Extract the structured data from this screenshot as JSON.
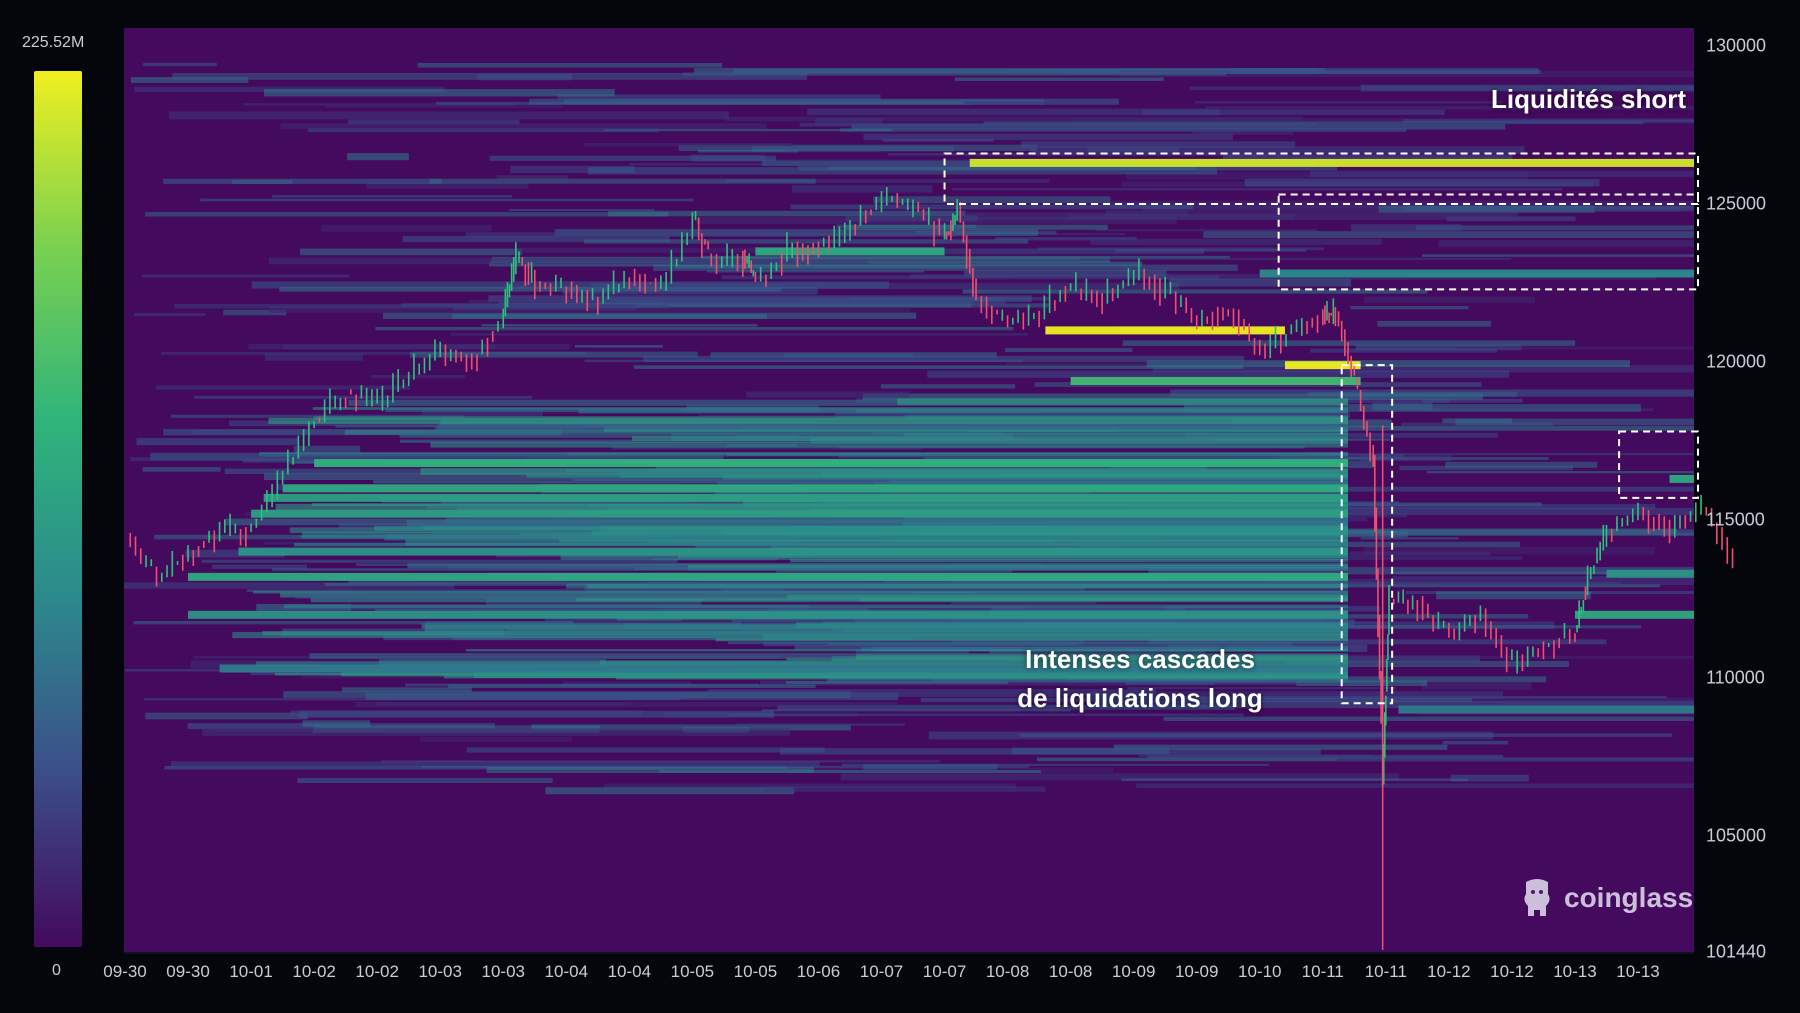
{
  "chart_data": {
    "type": "heatmap",
    "title": "",
    "x_tick_labels": [
      "09-30",
      "09-30",
      "10-01",
      "10-02",
      "10-02",
      "10-03",
      "10-03",
      "10-04",
      "10-04",
      "10-05",
      "10-05",
      "10-06",
      "10-07",
      "10-07",
      "10-08",
      "10-08",
      "10-09",
      "10-09",
      "10-10",
      "10-11",
      "10-11",
      "10-12",
      "10-12",
      "10-13",
      "10-13"
    ],
    "y_tick_labels": [
      "130000",
      "125000",
      "120000",
      "115000",
      "110000",
      "105000",
      "101440"
    ],
    "ylim": [
      101440,
      130000
    ],
    "colorbar": {
      "max_label": "225.52M",
      "min_label": "0",
      "colors": [
        "#440a5e",
        "#3b4f8a",
        "#2b8a8c",
        "#2fb47b",
        "#7ad150",
        "#f0ef1f"
      ]
    },
    "price_series": {
      "color_up": "#2ec27e",
      "color_down": "#f0506e",
      "approx_path": [
        [
          0,
          114400
        ],
        [
          0.5,
          113200
        ],
        [
          1.0,
          114000
        ],
        [
          1.5,
          114600
        ],
        [
          2.0,
          114800
        ],
        [
          2.5,
          116500
        ],
        [
          3.0,
          118200
        ],
        [
          3.5,
          119000
        ],
        [
          4.0,
          118700
        ],
        [
          4.5,
          119600
        ],
        [
          5.0,
          120300
        ],
        [
          5.5,
          120000
        ],
        [
          6.0,
          121500
        ],
        [
          6.2,
          123300
        ],
        [
          6.5,
          122500
        ],
        [
          7.0,
          122300
        ],
        [
          7.5,
          121900
        ],
        [
          8.0,
          122700
        ],
        [
          8.5,
          122300
        ],
        [
          9.0,
          124500
        ],
        [
          9.3,
          123200
        ],
        [
          9.8,
          123300
        ],
        [
          10.0,
          122600
        ],
        [
          10.5,
          123500
        ],
        [
          11.0,
          123700
        ],
        [
          11.5,
          124200
        ],
        [
          12.0,
          125200
        ],
        [
          12.5,
          124800
        ],
        [
          13.0,
          124000
        ],
        [
          13.2,
          124800
        ],
        [
          13.5,
          122000
        ],
        [
          14.0,
          121200
        ],
        [
          14.5,
          121600
        ],
        [
          15.0,
          122400
        ],
        [
          15.5,
          121900
        ],
        [
          16.0,
          122800
        ],
        [
          16.5,
          122200
        ],
        [
          17.0,
          121300
        ],
        [
          17.5,
          121600
        ],
        [
          18.0,
          120300
        ],
        [
          18.5,
          121000
        ],
        [
          19.0,
          121500
        ],
        [
          19.2,
          121500
        ],
        [
          19.5,
          119300
        ],
        [
          19.8,
          116800
        ],
        [
          19.95,
          106800
        ],
        [
          20.05,
          112500
        ],
        [
          20.5,
          112300
        ],
        [
          21.0,
          111300
        ],
        [
          21.5,
          112000
        ],
        [
          22.0,
          110400
        ],
        [
          22.5,
          111000
        ],
        [
          23.0,
          111500
        ],
        [
          23.2,
          113200
        ],
        [
          23.5,
          114600
        ],
        [
          24.0,
          115200
        ],
        [
          24.5,
          114700
        ],
        [
          25.0,
          115400
        ],
        [
          25.5,
          113800
        ]
      ]
    },
    "liquidity_bands": [
      {
        "price": 126300,
        "x_start": 13.4,
        "x_end": 25.8,
        "intensity": 0.95
      },
      {
        "price": 121000,
        "x_start": 14.6,
        "x_end": 18.4,
        "intensity": 1.0
      },
      {
        "price": 119900,
        "x_start": 18.4,
        "x_end": 19.6,
        "intensity": 1.0
      },
      {
        "price": 119400,
        "x_start": 15.0,
        "x_end": 19.6,
        "intensity": 0.65
      },
      {
        "price": 116800,
        "x_start": 3.0,
        "x_end": 19.4,
        "intensity": 0.6
      },
      {
        "price": 116000,
        "x_start": 2.5,
        "x_end": 19.4,
        "intensity": 0.55
      },
      {
        "price": 115700,
        "x_start": 2.2,
        "x_end": 19.4,
        "intensity": 0.5
      },
      {
        "price": 115200,
        "x_start": 2.0,
        "x_end": 19.4,
        "intensity": 0.5
      },
      {
        "price": 114000,
        "x_start": 1.8,
        "x_end": 19.4,
        "intensity": 0.45
      },
      {
        "price": 113200,
        "x_start": 1.0,
        "x_end": 19.4,
        "intensity": 0.55
      },
      {
        "price": 112000,
        "x_start": 1.0,
        "x_end": 19.4,
        "intensity": 0.45
      },
      {
        "price": 110300,
        "x_start": 1.5,
        "x_end": 19.4,
        "intensity": 0.35
      },
      {
        "price": 116300,
        "x_start": 24.5,
        "x_end": 25.8,
        "intensity": 0.55
      },
      {
        "price": 122800,
        "x_start": 18.0,
        "x_end": 25.8,
        "intensity": 0.4
      },
      {
        "price": 112000,
        "x_start": 23.0,
        "x_end": 25.8,
        "intensity": 0.55
      },
      {
        "price": 113300,
        "x_start": 23.5,
        "x_end": 25.8,
        "intensity": 0.45
      },
      {
        "price": 109000,
        "x_start": 20.2,
        "x_end": 25.8,
        "intensity": 0.35
      },
      {
        "price": 123500,
        "x_start": 10.0,
        "x_end": 13.0,
        "intensity": 0.55
      }
    ],
    "annotations": [
      {
        "text": "Liquidités short"
      },
      {
        "lines": [
          "Intenses cascades",
          "de liquidations long"
        ]
      }
    ],
    "highlight_boxes": [
      {
        "x_range": [
          13.0,
          25.8
        ],
        "y_range": [
          125000,
          126600
        ],
        "label": "short liquidity top"
      },
      {
        "x_range": [
          18.3,
          25.8
        ],
        "y_range": [
          122300,
          125300
        ],
        "label": "short liquidity upper"
      },
      {
        "x_range": [
          19.3,
          20.1
        ],
        "y_range": [
          109200,
          119900
        ],
        "label": "long liquidation cascade"
      },
      {
        "x_range": [
          23.7,
          25.8
        ],
        "y_range": [
          115700,
          117800
        ],
        "label": "short liquidity right"
      }
    ],
    "watermark": "coinglass"
  }
}
